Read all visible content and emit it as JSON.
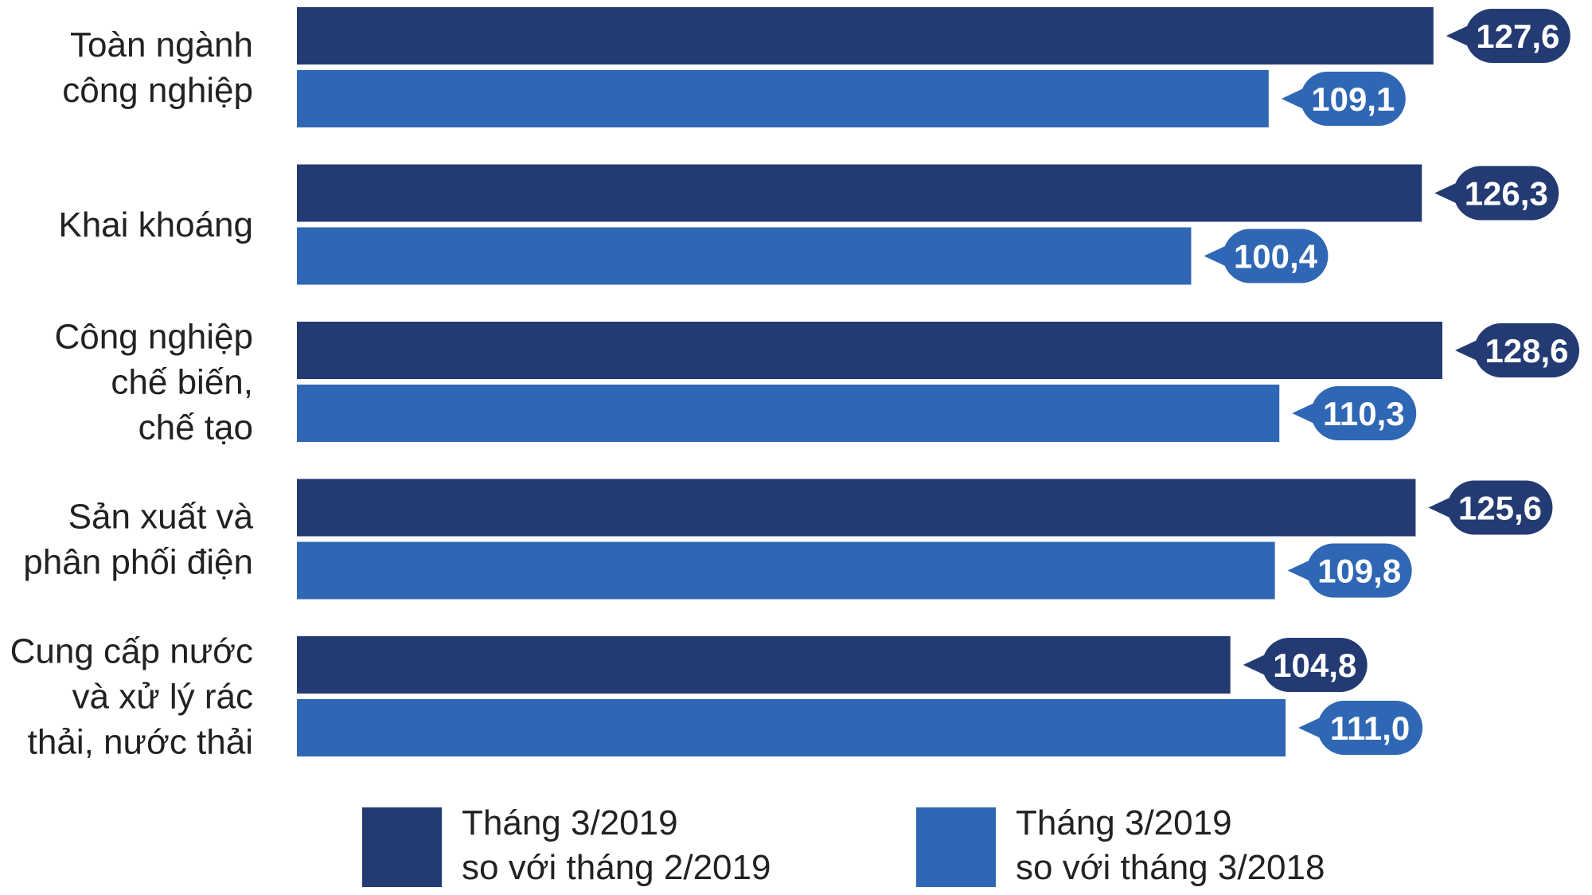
{
  "chart_data": {
    "type": "bar",
    "orientation": "horizontal",
    "categories": [
      [
        "Toàn ngành",
        "công nghiệp"
      ],
      [
        "Khai khoáng"
      ],
      [
        "Công nghiệp",
        "chế biến,",
        "chế tạo"
      ],
      [
        "Sản xuất và",
        "phân phối điện"
      ],
      [
        "Cung cấp nước",
        "và xử lý rác",
        "thải, nước thải"
      ]
    ],
    "series": [
      {
        "name": [
          "Tháng 3/2019",
          "so với tháng 2/2019"
        ],
        "color": "#233a73",
        "values": [
          127.6,
          126.3,
          128.6,
          125.6,
          104.8
        ],
        "labels": [
          "127,6",
          "126,3",
          "128,6",
          "125,6",
          "104,8"
        ]
      },
      {
        "name": [
          "Tháng 3/2019",
          "so với tháng 3/2018"
        ],
        "color": "#2f67b4",
        "values": [
          109.1,
          100.4,
          110.3,
          109.8,
          111.0
        ],
        "labels": [
          "109,1",
          "100,4",
          "110,3",
          "109,8",
          "111,0"
        ]
      }
    ],
    "legend_position": "bottom",
    "grid": false,
    "title": "",
    "xlabel": "",
    "ylabel": ""
  }
}
